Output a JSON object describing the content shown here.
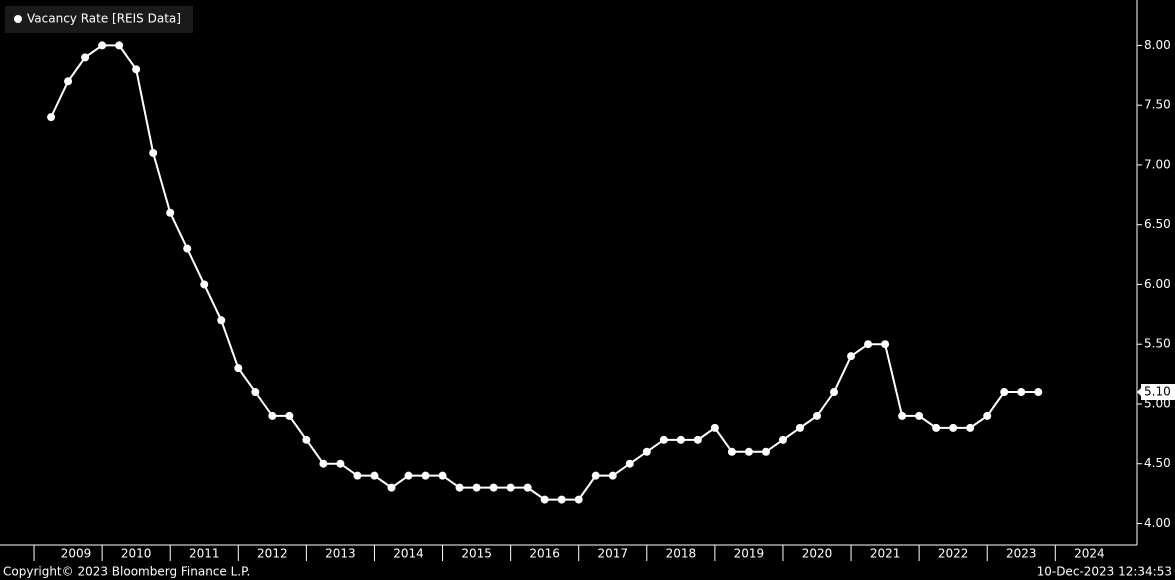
{
  "chart_data": {
    "type": "line",
    "series": [
      {
        "name": "Vacancy Rate [REIS Data]",
        "color": "#ffffff",
        "x": [
          2009.25,
          2009.5,
          2009.75,
          2010,
          2010.25,
          2010.5,
          2010.75,
          2011,
          2011.25,
          2011.5,
          2011.75,
          2012,
          2012.25,
          2012.5,
          2012.75,
          2013,
          2013.25,
          2013.5,
          2013.75,
          2014,
          2014.25,
          2014.5,
          2014.75,
          2015,
          2015.25,
          2015.5,
          2015.75,
          2016,
          2016.25,
          2016.5,
          2016.75,
          2017,
          2017.25,
          2017.5,
          2017.75,
          2018,
          2018.25,
          2018.5,
          2018.75,
          2019,
          2019.25,
          2019.5,
          2019.75,
          2020,
          2020.25,
          2020.5,
          2020.75,
          2021,
          2021.25,
          2021.5,
          2021.75,
          2022,
          2022.25,
          2022.5,
          2022.75,
          2023,
          2023.25,
          2023.5,
          2023.75
        ],
        "values": [
          7.4,
          7.7,
          7.9,
          8.0,
          8.0,
          7.8,
          7.1,
          6.6,
          6.3,
          6.0,
          5.7,
          5.3,
          5.1,
          4.9,
          4.9,
          4.7,
          4.5,
          4.5,
          4.4,
          4.4,
          4.3,
          4.4,
          4.4,
          4.4,
          4.3,
          4.3,
          4.3,
          4.3,
          4.3,
          4.2,
          4.2,
          4.2,
          4.4,
          4.4,
          4.5,
          4.6,
          4.7,
          4.7,
          4.7,
          4.8,
          4.6,
          4.6,
          4.6,
          4.7,
          4.8,
          4.9,
          5.1,
          5.4,
          5.5,
          5.5,
          4.9,
          4.9,
          4.8,
          4.8,
          4.8,
          4.9,
          5.1,
          5.1,
          5.1
        ]
      }
    ],
    "last_value_label": "5.10",
    "xlim": [
      2008.5,
      2025.2
    ],
    "xticks": [
      2009,
      2010,
      2011,
      2012,
      2013,
      2014,
      2015,
      2016,
      2017,
      2018,
      2019,
      2020,
      2021,
      2022,
      2023,
      2024
    ],
    "ylim": [
      3.82,
      8.38
    ],
    "yticks": [
      {
        "value": 4,
        "label": "4.00"
      },
      {
        "value": 4.5,
        "label": "4.50"
      },
      {
        "value": 5,
        "label": "5.00"
      },
      {
        "value": 5.5,
        "label": "5.50"
      },
      {
        "value": 6,
        "label": "6.00"
      },
      {
        "value": 6.5,
        "label": "6.50"
      },
      {
        "value": 7,
        "label": "7.00"
      },
      {
        "value": 7.5,
        "label": "7.50"
      },
      {
        "value": 8,
        "label": "8.00"
      }
    ],
    "legend": "top-left",
    "copyright": "Copyright© 2023 Bloomberg Finance L.P.",
    "timestamp": "10-Dec-2023 12:34:53"
  }
}
